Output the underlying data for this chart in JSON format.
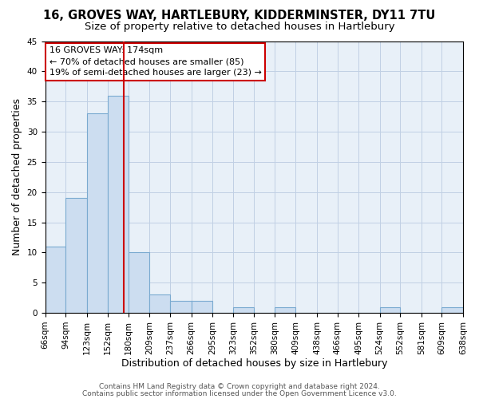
{
  "title": "16, GROVES WAY, HARTLEBURY, KIDDERMINSTER, DY11 7TU",
  "subtitle": "Size of property relative to detached houses in Hartlebury",
  "xlabel": "Distribution of detached houses by size in Hartlebury",
  "ylabel": "Number of detached properties",
  "bin_edges": [
    66,
    94,
    123,
    152,
    180,
    209,
    237,
    266,
    295,
    323,
    352,
    380,
    409,
    438,
    466,
    495,
    524,
    552,
    581,
    609,
    638
  ],
  "bar_heights": [
    11,
    19,
    33,
    36,
    10,
    3,
    2,
    2,
    0,
    1,
    0,
    1,
    0,
    0,
    0,
    0,
    1,
    0,
    0,
    1
  ],
  "bar_color": "#ccddf0",
  "bar_edge_color": "#7aaad0",
  "vline_x": 174,
  "vline_color": "#cc0000",
  "ylim": [
    0,
    45
  ],
  "yticks": [
    0,
    5,
    10,
    15,
    20,
    25,
    30,
    35,
    40,
    45
  ],
  "x_tick_labels": [
    "66sqm",
    "94sqm",
    "123sqm",
    "152sqm",
    "180sqm",
    "209sqm",
    "237sqm",
    "266sqm",
    "295sqm",
    "323sqm",
    "352sqm",
    "380sqm",
    "409sqm",
    "438sqm",
    "466sqm",
    "495sqm",
    "524sqm",
    "552sqm",
    "581sqm",
    "609sqm",
    "638sqm"
  ],
  "annotation_title": "16 GROVES WAY: 174sqm",
  "annotation_line1": "← 70% of detached houses are smaller (85)",
  "annotation_line2": "19% of semi-detached houses are larger (23) →",
  "footer_line1": "Contains HM Land Registry data © Crown copyright and database right 2024.",
  "footer_line2": "Contains public sector information licensed under the Open Government Licence v3.0.",
  "background_color": "#ffffff",
  "plot_bg_color": "#e8f0f8",
  "grid_color": "#c0d0e4",
  "title_fontsize": 10.5,
  "subtitle_fontsize": 9.5,
  "axis_label_fontsize": 9,
  "tick_fontsize": 7.5,
  "annotation_fontsize": 8,
  "footer_fontsize": 6.5
}
